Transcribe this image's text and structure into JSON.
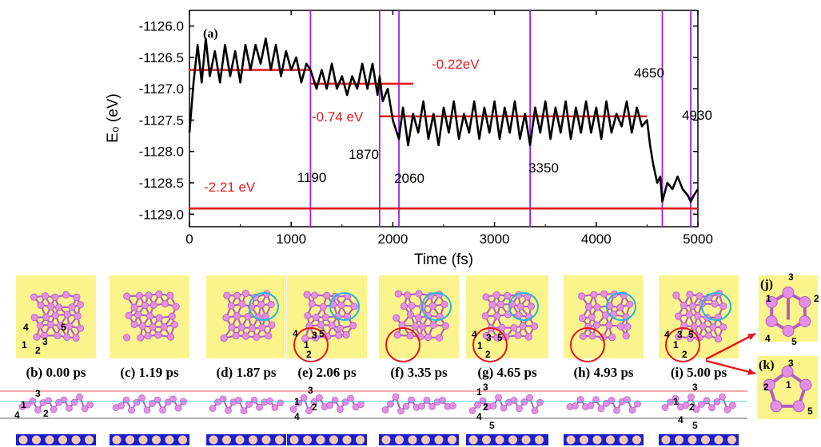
{
  "chart_data": {
    "type": "line",
    "panel_label": "(a)",
    "xlabel": "Time (fs)",
    "ylabel": "E₀ (eV)",
    "xlim": [
      0,
      5000
    ],
    "ylim": [
      -1129.2,
      -1125.75
    ],
    "xticks": [
      0,
      1000,
      2000,
      3000,
      4000,
      5000
    ],
    "xtick_labels": [
      "0",
      "1000",
      "2000",
      "3000",
      "4000",
      "5000"
    ],
    "yticks": [
      -1126.0,
      -1126.5,
      -1127.0,
      -1127.5,
      -1128.0,
      -1128.5,
      -1129.0
    ],
    "ytick_labels": [
      "-1126.0",
      "-1126.5",
      "-1127.0",
      "-1127.5",
      "-1128.0",
      "-1128.5",
      "-1129.0"
    ],
    "series": [
      {
        "color": "#000000",
        "x": [
          0,
          40,
          80,
          120,
          160,
          200,
          250,
          300,
          350,
          400,
          450,
          500,
          550,
          600,
          650,
          700,
          750,
          800,
          850,
          900,
          950,
          1000,
          1050,
          1100,
          1150,
          1190,
          1250,
          1300,
          1350,
          1400,
          1450,
          1500,
          1550,
          1600,
          1650,
          1700,
          1750,
          1800,
          1850,
          1870,
          1900,
          1950,
          2000,
          2060,
          2100,
          2150,
          2200,
          2250,
          2300,
          2350,
          2400,
          2450,
          2500,
          2550,
          2600,
          2650,
          2700,
          2750,
          2800,
          2850,
          2900,
          2950,
          3000,
          3050,
          3100,
          3150,
          3200,
          3250,
          3300,
          3350,
          3400,
          3450,
          3500,
          3550,
          3600,
          3650,
          3700,
          3750,
          3800,
          3850,
          3900,
          3950,
          4000,
          4050,
          4100,
          4150,
          4200,
          4250,
          4300,
          4350,
          4400,
          4450,
          4500,
          4530,
          4560,
          4600,
          4630,
          4650,
          4700,
          4750,
          4800,
          4850,
          4900,
          4930,
          4960,
          5000
        ],
        "y": [
          -1127.7,
          -1126.9,
          -1126.3,
          -1126.9,
          -1126.2,
          -1126.8,
          -1126.4,
          -1126.9,
          -1126.3,
          -1126.8,
          -1126.4,
          -1126.9,
          -1126.3,
          -1126.7,
          -1126.3,
          -1126.6,
          -1126.2,
          -1126.7,
          -1126.3,
          -1126.8,
          -1126.4,
          -1126.7,
          -1126.5,
          -1126.9,
          -1126.6,
          -1126.7,
          -1127.0,
          -1126.7,
          -1127.0,
          -1126.6,
          -1127.0,
          -1126.8,
          -1127.1,
          -1126.8,
          -1127.0,
          -1126.6,
          -1127.0,
          -1126.6,
          -1127.1,
          -1126.8,
          -1127.2,
          -1127.0,
          -1127.5,
          -1127.8,
          -1127.3,
          -1127.9,
          -1127.4,
          -1127.7,
          -1127.2,
          -1127.8,
          -1127.4,
          -1127.9,
          -1127.3,
          -1127.7,
          -1127.2,
          -1127.8,
          -1127.4,
          -1127.7,
          -1127.2,
          -1127.8,
          -1127.3,
          -1127.7,
          -1127.2,
          -1127.8,
          -1127.3,
          -1127.7,
          -1127.2,
          -1127.8,
          -1127.4,
          -1127.9,
          -1127.3,
          -1127.7,
          -1127.2,
          -1127.8,
          -1127.3,
          -1127.7,
          -1127.2,
          -1127.8,
          -1127.3,
          -1127.7,
          -1127.2,
          -1127.7,
          -1127.3,
          -1127.8,
          -1127.2,
          -1127.7,
          -1127.4,
          -1127.6,
          -1127.2,
          -1127.7,
          -1127.3,
          -1127.6,
          -1127.5,
          -1127.9,
          -1128.2,
          -1128.5,
          -1128.4,
          -1128.8,
          -1128.5,
          -1128.6,
          -1128.4,
          -1128.6,
          -1128.7,
          -1128.8,
          -1128.7,
          -1128.6
        ]
      }
    ],
    "reference_lines": [
      {
        "type": "h",
        "y": -1126.7,
        "x_start": 0,
        "x_end": 1190,
        "color": "#e41a1c",
        "label": ""
      },
      {
        "type": "h",
        "y": -1126.92,
        "x_start": 1190,
        "x_end": 2200,
        "color": "#e41a1c",
        "label": "-0.22eV"
      },
      {
        "type": "h",
        "y": -1127.44,
        "x_start": 1870,
        "x_end": 4500,
        "color": "#e41a1c",
        "label": "-0.74 eV"
      },
      {
        "type": "h",
        "y": -1128.91,
        "x_start": 0,
        "x_end": 5000,
        "color": "#e41a1c",
        "label": "-2.21 eV"
      }
    ],
    "markers": [
      {
        "x": 1190,
        "label": "1190"
      },
      {
        "x": 1870,
        "label": "1870"
      },
      {
        "x": 2060,
        "label": "2060"
      },
      {
        "x": 3350,
        "label": "3350"
      },
      {
        "x": 4650,
        "label": "4650"
      },
      {
        "x": 4930,
        "label": "4930"
      }
    ],
    "marker_color": "#a020f0",
    "refline_color": "#e41a1c"
  },
  "snapshots": {
    "labels": [
      "(b) 0.00 ps",
      "(c) 1.19 ps",
      "(d) 1.87 ps",
      "(e) 2.06 ps",
      "(f) 3.35 ps",
      "(g) 4.65 ps",
      "(h) 4.93 ps",
      "(i) 5.00 ps"
    ],
    "side_labels": [
      "(j)",
      "(k)"
    ],
    "atom_labels_b": [
      "4",
      "5",
      "1",
      "3",
      "2"
    ],
    "atom_labels_e": [
      "4",
      "3",
      "5",
      "1",
      "2"
    ],
    "atom_labels_g": [
      "4",
      "3",
      "5",
      "1",
      "2"
    ],
    "atom_labels_i": [
      "4",
      "3",
      "5",
      "1",
      "2"
    ],
    "atom_labels_j": [
      "3",
      "1",
      "2",
      "4",
      "5"
    ],
    "atom_labels_k": [
      "3",
      "2",
      "1",
      "5"
    ],
    "side_atom_labels_b": [
      "3",
      "1",
      "2",
      "4"
    ],
    "side_atom_labels_e": [
      "3",
      "1",
      "2",
      "4"
    ],
    "side_atom_labels_g": [
      "3",
      "1",
      "2",
      "4",
      "5"
    ],
    "side_atom_labels_i": [
      "3",
      "1",
      "2",
      "4",
      "5"
    ],
    "colors": {
      "panel_bg": "#fbf48c",
      "atom": "#e48ee6",
      "bond": "#b35fc0",
      "circle_red": "#e8141b",
      "circle_cyan": "#1fb8d8",
      "substrate_blue": "#1c1fd0",
      "substrate_atom": "#f3c8b2"
    }
  }
}
